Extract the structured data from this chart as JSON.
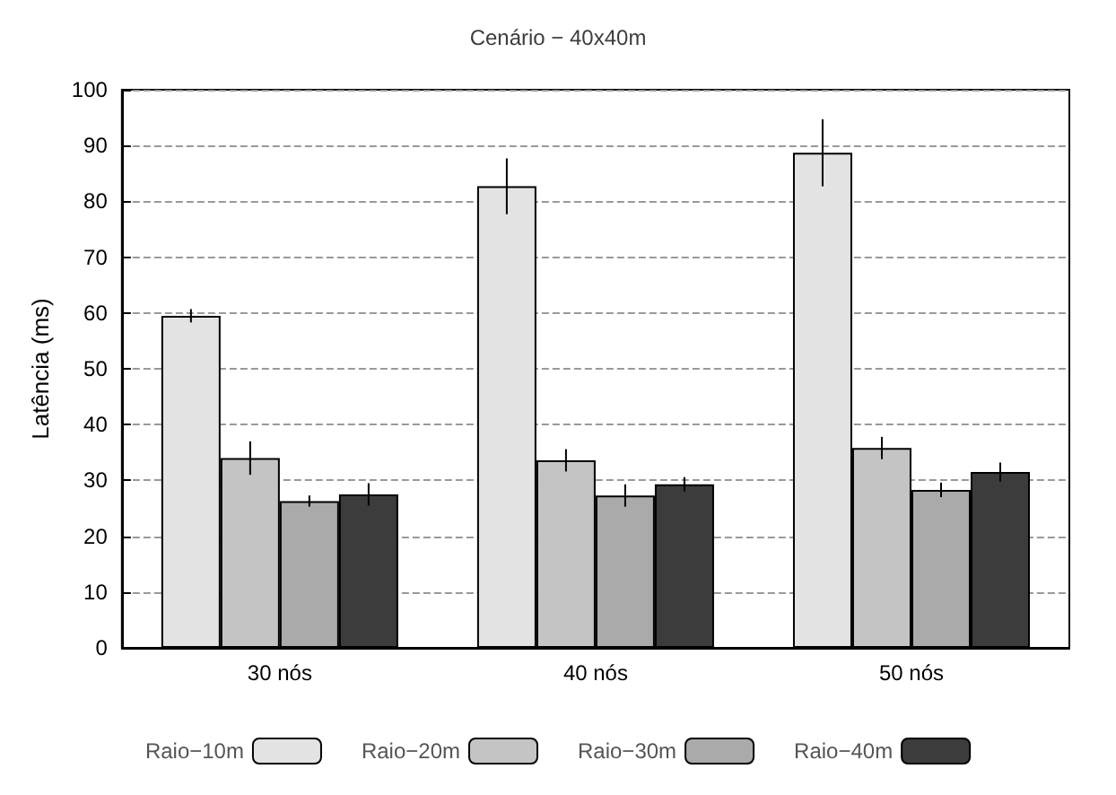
{
  "chart_data": {
    "type": "bar",
    "title": "Cenário − 40x40m",
    "ylabel": "Latência (ms)",
    "categories": [
      "30 nós",
      "40 nós",
      "50 nós"
    ],
    "series": [
      {
        "name": "Raio−10m",
        "color": "#e3e3e3",
        "values": [
          59.5,
          82.7,
          88.7
        ],
        "errors": [
          1.2,
          5,
          6
        ]
      },
      {
        "name": "Raio−20m",
        "color": "#c4c4c4",
        "values": [
          34,
          33.6,
          35.8
        ],
        "errors": [
          3,
          2,
          2
        ]
      },
      {
        "name": "Raio−30m",
        "color": "#aaaaaa",
        "values": [
          26.3,
          27.3,
          28.3
        ],
        "errors": [
          1,
          2,
          1.3
        ]
      },
      {
        "name": "Raio−40m",
        "color": "#3c3c3c",
        "values": [
          27.5,
          29.3,
          31.5
        ],
        "errors": [
          2,
          1.3,
          1.7
        ]
      }
    ],
    "ylim": [
      0,
      100
    ],
    "yticks": [
      0,
      10,
      20,
      30,
      40,
      50,
      60,
      70,
      80,
      90,
      100
    ],
    "grid": "y",
    "legend": "bottom"
  }
}
